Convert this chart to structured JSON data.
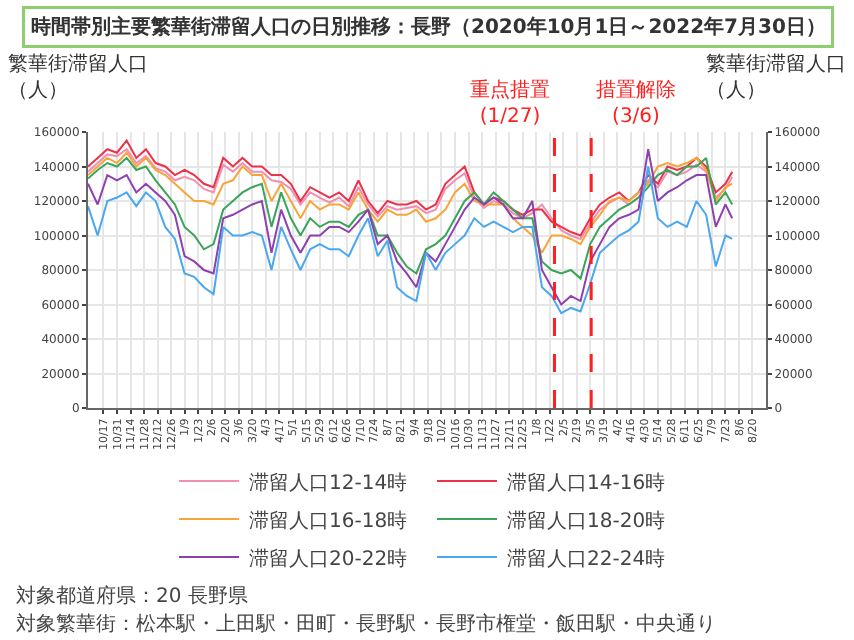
{
  "chart_data": {
    "type": "line",
    "title": "時間帯別主要繁華街滞留人口の日別推移：長野（2020年10月1日～2022年7月30日）",
    "ylabel": "繁華街滞留人口（人）",
    "y2label": "繁華街滞留人口（人）",
    "x": [
      "2020-10-01",
      "2020-10-11",
      "2020-10-21",
      "2020-10-31",
      "2020-11-10",
      "2020-11-20",
      "2020-11-30",
      "2020-12-10",
      "2020-12-20",
      "2020-12-30",
      "2021-01-09",
      "2021-01-19",
      "2021-01-29",
      "2021-02-08",
      "2021-02-18",
      "2021-02-28",
      "2021-03-10",
      "2021-03-20",
      "2021-03-30",
      "2021-04-09",
      "2021-04-19",
      "2021-04-29",
      "2021-05-09",
      "2021-05-19",
      "2021-05-29",
      "2021-06-08",
      "2021-06-18",
      "2021-06-28",
      "2021-07-08",
      "2021-07-18",
      "2021-07-28",
      "2021-08-07",
      "2021-08-17",
      "2021-08-27",
      "2021-09-06",
      "2021-09-16",
      "2021-09-26",
      "2021-10-06",
      "2021-10-16",
      "2021-10-26",
      "2021-11-05",
      "2021-11-15",
      "2021-11-25",
      "2021-12-05",
      "2021-12-15",
      "2021-12-25",
      "2022-01-04",
      "2022-01-14",
      "2022-01-24",
      "2022-02-03",
      "2022-02-13",
      "2022-02-23",
      "2022-03-05",
      "2022-03-15",
      "2022-03-25",
      "2022-04-04",
      "2022-04-14",
      "2022-04-24",
      "2022-05-04",
      "2022-05-14",
      "2022-05-24",
      "2022-06-03",
      "2022-06-13",
      "2022-06-23",
      "2022-07-03",
      "2022-07-13",
      "2022-07-23",
      "2022-07-30"
    ],
    "series": [
      {
        "name": "滞留人口12-14時",
        "color": "#f48fb1",
        "values": [
          137000,
          142000,
          147000,
          146000,
          150000,
          142000,
          146000,
          139000,
          137000,
          132000,
          134000,
          132000,
          127000,
          125000,
          141000,
          137000,
          142000,
          137000,
          137000,
          132000,
          131000,
          127000,
          118000,
          125000,
          122000,
          119000,
          122000,
          117000,
          128000,
          118000,
          111000,
          117000,
          115000,
          116000,
          117000,
          113000,
          115000,
          127000,
          132000,
          136000,
          122000,
          116000,
          120000,
          118000,
          113000,
          110000,
          113000,
          118000,
          110000,
          103000,
          100000,
          98000,
          107000,
          115000,
          119000,
          122000,
          118000,
          122000,
          132000,
          128000,
          137000,
          135000,
          137000,
          141000,
          137000,
          122000,
          127000,
          134000
        ]
      },
      {
        "name": "滞留人口14-16時",
        "color": "#e8334a",
        "values": [
          140000,
          145000,
          150000,
          148000,
          155000,
          145000,
          150000,
          142000,
          140000,
          135000,
          138000,
          135000,
          130000,
          128000,
          145000,
          140000,
          145000,
          140000,
          140000,
          135000,
          135000,
          130000,
          120000,
          128000,
          125000,
          122000,
          125000,
          120000,
          132000,
          120000,
          113000,
          120000,
          118000,
          118000,
          120000,
          115000,
          118000,
          130000,
          135000,
          140000,
          125000,
          118000,
          122000,
          120000,
          115000,
          112000,
          115000,
          115000,
          108000,
          105000,
          102000,
          100000,
          110000,
          118000,
          122000,
          125000,
          120000,
          125000,
          135000,
          130000,
          140000,
          138000,
          140000,
          145000,
          140000,
          125000,
          130000,
          137000
        ]
      },
      {
        "name": "滞留人口16-18時",
        "color": "#f5a53a",
        "values": [
          135000,
          140000,
          145000,
          142000,
          148000,
          140000,
          145000,
          138000,
          135000,
          130000,
          125000,
          120000,
          120000,
          118000,
          130000,
          132000,
          140000,
          135000,
          135000,
          120000,
          130000,
          120000,
          110000,
          120000,
          115000,
          118000,
          118000,
          115000,
          125000,
          115000,
          108000,
          115000,
          112000,
          112000,
          115000,
          108000,
          110000,
          115000,
          125000,
          130000,
          120000,
          118000,
          118000,
          118000,
          110000,
          105000,
          100000,
          90000,
          100000,
          100000,
          98000,
          95000,
          105000,
          112000,
          120000,
          122000,
          120000,
          125000,
          130000,
          140000,
          142000,
          140000,
          142000,
          145000,
          138000,
          120000,
          128000,
          130000
        ]
      },
      {
        "name": "滞留人口18-20時",
        "color": "#3aa45a",
        "values": [
          133000,
          138000,
          142000,
          140000,
          145000,
          138000,
          140000,
          132000,
          125000,
          118000,
          105000,
          100000,
          92000,
          95000,
          115000,
          120000,
          125000,
          128000,
          130000,
          105000,
          125000,
          110000,
          100000,
          110000,
          105000,
          108000,
          108000,
          105000,
          112000,
          115000,
          100000,
          100000,
          90000,
          82000,
          78000,
          92000,
          95000,
          100000,
          110000,
          120000,
          125000,
          118000,
          125000,
          120000,
          115000,
          110000,
          110000,
          85000,
          80000,
          78000,
          80000,
          75000,
          95000,
          105000,
          110000,
          115000,
          118000,
          122000,
          128000,
          135000,
          138000,
          135000,
          140000,
          140000,
          145000,
          118000,
          125000,
          118000
        ]
      },
      {
        "name": "滞留人口20-22時",
        "color": "#8e3fb0",
        "values": [
          130000,
          118000,
          135000,
          132000,
          135000,
          125000,
          130000,
          125000,
          120000,
          112000,
          88000,
          85000,
          80000,
          78000,
          110000,
          112000,
          115000,
          118000,
          120000,
          90000,
          115000,
          100000,
          90000,
          100000,
          100000,
          105000,
          105000,
          102000,
          108000,
          115000,
          95000,
          100000,
          85000,
          78000,
          70000,
          90000,
          85000,
          95000,
          105000,
          115000,
          122000,
          118000,
          122000,
          118000,
          110000,
          110000,
          120000,
          80000,
          70000,
          60000,
          65000,
          62000,
          85000,
          95000,
          105000,
          110000,
          112000,
          115000,
          150000,
          120000,
          125000,
          128000,
          132000,
          135000,
          135000,
          105000,
          118000,
          110000
        ]
      },
      {
        "name": "滞留人口22-24時",
        "color": "#4aa8f0",
        "values": [
          117000,
          100000,
          120000,
          122000,
          125000,
          117000,
          125000,
          120000,
          105000,
          98000,
          78000,
          76000,
          70000,
          66000,
          105000,
          100000,
          100000,
          102000,
          100000,
          80000,
          105000,
          92000,
          80000,
          92000,
          95000,
          92000,
          92000,
          88000,
          100000,
          110000,
          88000,
          97000,
          70000,
          65000,
          62000,
          90000,
          80000,
          90000,
          95000,
          100000,
          110000,
          105000,
          108000,
          105000,
          102000,
          105000,
          105000,
          70000,
          65000,
          55000,
          58000,
          56000,
          72000,
          90000,
          95000,
          100000,
          103000,
          108000,
          140000,
          110000,
          105000,
          108000,
          105000,
          120000,
          112000,
          82000,
          100000,
          98000
        ]
      }
    ],
    "xlim": [
      "2020-10-01",
      "2022-09-03"
    ],
    "xticks": [
      {
        "value": "2020-10-17",
        "label": "10/17"
      },
      {
        "value": "2020-10-31",
        "label": "10/31"
      },
      {
        "value": "2020-11-14",
        "label": "11/14"
      },
      {
        "value": "2020-11-28",
        "label": "11/28"
      },
      {
        "value": "2020-12-12",
        "label": "12/12"
      },
      {
        "value": "2020-12-26",
        "label": "12/26"
      },
      {
        "value": "2021-01-09",
        "label": "1/9"
      },
      {
        "value": "2021-01-23",
        "label": "1/23"
      },
      {
        "value": "2021-02-06",
        "label": "2/6"
      },
      {
        "value": "2021-02-20",
        "label": "2/20"
      },
      {
        "value": "2021-03-06",
        "label": "3/6"
      },
      {
        "value": "2021-03-20",
        "label": "3/20"
      },
      {
        "value": "2021-04-03",
        "label": "4/3"
      },
      {
        "value": "2021-04-17",
        "label": "4/17"
      },
      {
        "value": "2021-05-01",
        "label": "5/1"
      },
      {
        "value": "2021-05-15",
        "label": "5/15"
      },
      {
        "value": "2021-05-29",
        "label": "5/29"
      },
      {
        "value": "2021-06-12",
        "label": "6/12"
      },
      {
        "value": "2021-06-26",
        "label": "6/26"
      },
      {
        "value": "2021-07-10",
        "label": "7/10"
      },
      {
        "value": "2021-07-24",
        "label": "7/24"
      },
      {
        "value": "2021-08-07",
        "label": "8/7"
      },
      {
        "value": "2021-08-21",
        "label": "8/21"
      },
      {
        "value": "2021-09-04",
        "label": "9/4"
      },
      {
        "value": "2021-09-18",
        "label": "9/18"
      },
      {
        "value": "2021-10-02",
        "label": "10/2"
      },
      {
        "value": "2021-10-16",
        "label": "10/16"
      },
      {
        "value": "2021-10-30",
        "label": "10/30"
      },
      {
        "value": "2021-11-13",
        "label": "11/13"
      },
      {
        "value": "2021-11-27",
        "label": "11/27"
      },
      {
        "value": "2021-12-11",
        "label": "12/11"
      },
      {
        "value": "2021-12-25",
        "label": "12/25"
      },
      {
        "value": "2022-01-08",
        "label": "1/8"
      },
      {
        "value": "2022-01-22",
        "label": "1/22"
      },
      {
        "value": "2022-02-05",
        "label": "2/5"
      },
      {
        "value": "2022-02-19",
        "label": "2/19"
      },
      {
        "value": "2022-03-05",
        "label": "3/5"
      },
      {
        "value": "2022-03-19",
        "label": "3/19"
      },
      {
        "value": "2022-04-02",
        "label": "4/2"
      },
      {
        "value": "2022-04-16",
        "label": "4/16"
      },
      {
        "value": "2022-04-30",
        "label": "4/30"
      },
      {
        "value": "2022-05-14",
        "label": "5/14"
      },
      {
        "value": "2022-05-28",
        "label": "5/28"
      },
      {
        "value": "2022-06-11",
        "label": "6/11"
      },
      {
        "value": "2022-06-25",
        "label": "6/25"
      },
      {
        "value": "2022-07-09",
        "label": "7/9"
      },
      {
        "value": "2022-07-23",
        "label": "7/23"
      },
      {
        "value": "2022-08-06",
        "label": "8/6"
      },
      {
        "value": "2022-08-20",
        "label": "8/20"
      }
    ],
    "ylim": [
      0,
      160000
    ],
    "yticks": [
      0,
      20000,
      40000,
      60000,
      80000,
      100000,
      120000,
      140000,
      160000
    ],
    "y2lim": [
      0,
      160000
    ],
    "y2ticks": [
      0,
      20000,
      40000,
      60000,
      80000,
      100000,
      120000,
      140000,
      160000
    ],
    "ref_lines": [
      {
        "axis": "x",
        "value": "2022-01-27",
        "label": "重点措置(1/27)",
        "color": "#ff2020",
        "line_style": "dashed"
      },
      {
        "axis": "x",
        "value": "2022-03-06",
        "label": "措置解除(3/6)",
        "color": "#ff2020",
        "line_style": "dashed"
      }
    ],
    "annotations": [
      "対象都道府県：20 長野県",
      "対象繁華街：松本駅・上田駅・田町・長野駅・長野市権堂・飯田駅・中央通り"
    ],
    "grid": true,
    "legend": "bottom",
    "marker": "none",
    "line_style": "solid"
  }
}
